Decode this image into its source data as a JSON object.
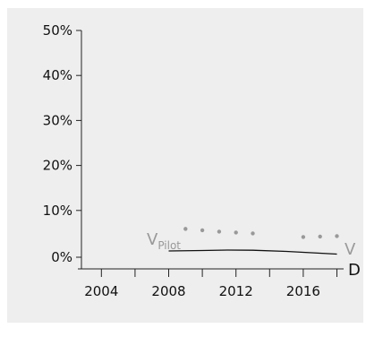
{
  "colors": {
    "panel_bg": "#eeeeee",
    "axis": "#222222",
    "pilot": "#999999",
    "d_line": "#111111"
  },
  "chart_data": {
    "type": "line",
    "title": "",
    "xlabel": "",
    "ylabel": "",
    "xlim": [
      2002.6,
      2018.4
    ],
    "ylim": [
      0,
      50
    ],
    "grid": false,
    "x_ticks": [
      2004,
      2006,
      2008,
      2010,
      2012,
      2014,
      2016,
      2018
    ],
    "x_tick_labels": [
      {
        "x": 2004,
        "label": "2004"
      },
      {
        "x": 2008,
        "label": "2008"
      },
      {
        "x": 2012,
        "label": "2012"
      },
      {
        "x": 2016,
        "label": "2016"
      }
    ],
    "y_ticks": [
      {
        "y": 0,
        "label": "0%"
      },
      {
        "y": 10,
        "label": "10%"
      },
      {
        "y": 20,
        "label": "20%"
      },
      {
        "y": 30,
        "label": "30%"
      },
      {
        "y": 40,
        "label": "40%"
      },
      {
        "y": 50,
        "label": "50%"
      }
    ],
    "series": [
      {
        "name": "V",
        "label_sub": "Pilot",
        "style": "dotted",
        "x": [
          2009,
          2010,
          2011,
          2012,
          2013
        ],
        "y": [
          5.9,
          5.6,
          5.3,
          5.1,
          4.9
        ]
      },
      {
        "name": "V",
        "style": "dotted",
        "x": [
          2016,
          2017,
          2018
        ],
        "y": [
          4.1,
          4.2,
          4.3
        ]
      },
      {
        "name": "D",
        "style": "solid",
        "x": [
          2008,
          2010,
          2011.5,
          2013,
          2015,
          2016.5,
          2018
        ],
        "y": [
          1.0,
          1.1,
          1.2,
          1.15,
          0.9,
          0.6,
          0.3
        ]
      }
    ]
  }
}
